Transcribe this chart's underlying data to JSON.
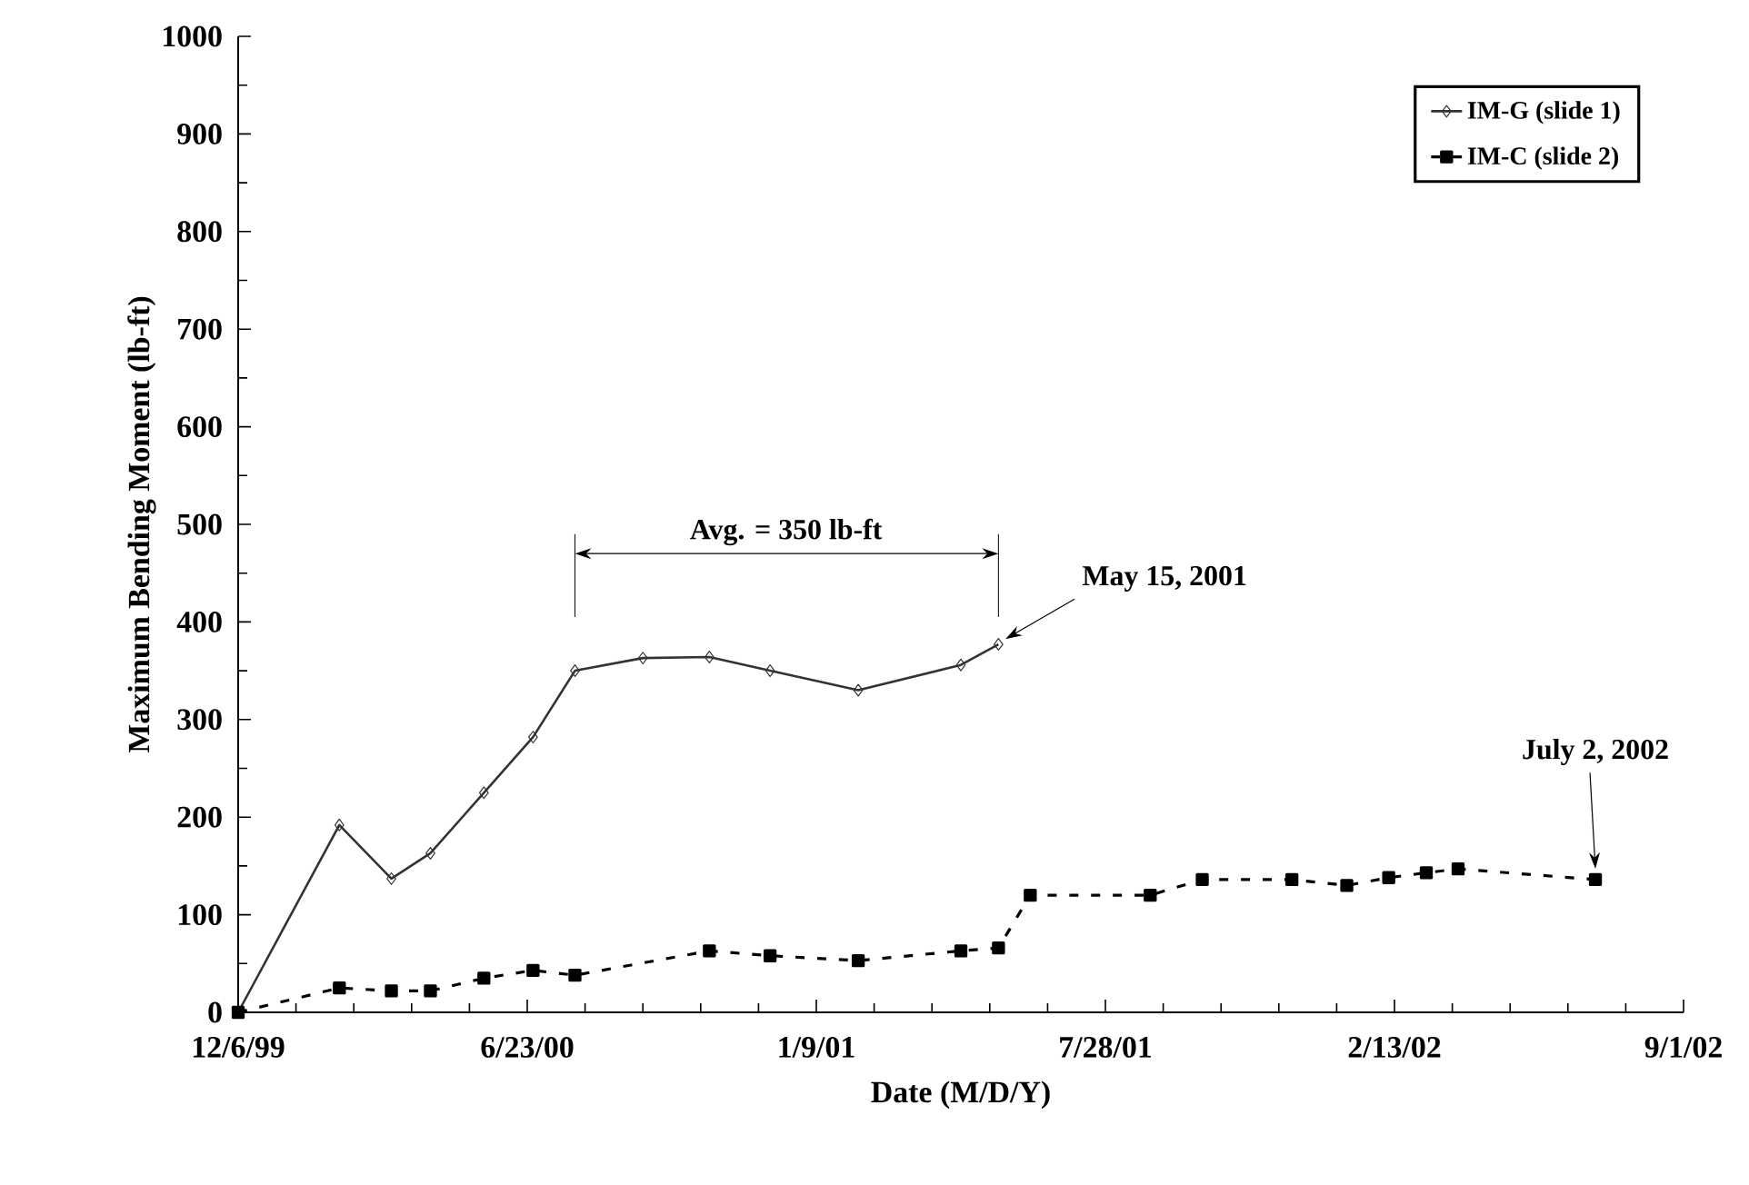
{
  "chart_data": {
    "type": "line",
    "xlabel": "Date (M/D/Y)",
    "ylabel": "Maximum Bending Moment (lb-ft)",
    "xlim": [
      "1999-12-06",
      "2002-09-01"
    ],
    "xticks": [
      {
        "value": "1999-12-06",
        "label": "12/6/99"
      },
      {
        "value": "2000-06-23",
        "label": "6/23/00"
      },
      {
        "value": "2001-01-09",
        "label": "1/9/01"
      },
      {
        "value": "2001-07-28",
        "label": "7/28/01"
      },
      {
        "value": "2002-02-13",
        "label": "2/13/02"
      },
      {
        "value": "2002-09-01",
        "label": "9/1/02"
      }
    ],
    "ylim": [
      0,
      1000
    ],
    "yticks": [
      0,
      100,
      200,
      300,
      400,
      500,
      600,
      700,
      800,
      900,
      1000
    ],
    "legend": "top right",
    "series": [
      {
        "name": "IM-G (slide 1)",
        "color": "#333333",
        "marker": "diamond",
        "line_style": "solid",
        "x": [
          "1999-12-06",
          "2000-02-14",
          "2000-03-21",
          "2000-04-17",
          "2000-05-24",
          "2000-06-27",
          "2000-07-26",
          "2000-09-11",
          "2000-10-27",
          "2000-12-08",
          "2001-02-07",
          "2001-04-19",
          "2001-05-15"
        ],
        "values": [
          0,
          192,
          137,
          163,
          225,
          282,
          350,
          363,
          364,
          350,
          330,
          356,
          377
        ]
      },
      {
        "name": "IM-C (slide 2)",
        "color": "#000000",
        "marker": "square",
        "line_style": "dashed",
        "x": [
          "1999-12-06",
          "2000-02-14",
          "2000-03-21",
          "2000-04-17",
          "2000-05-24",
          "2000-06-27",
          "2000-07-26",
          "2000-10-27",
          "2000-12-08",
          "2001-02-07",
          "2001-04-19",
          "2001-05-15",
          "2001-06-06",
          "2001-08-28",
          "2001-10-03",
          "2001-12-04",
          "2002-01-11",
          "2002-02-09",
          "2002-03-07",
          "2002-03-29",
          "2002-07-02"
        ],
        "values": [
          0,
          25,
          22,
          22,
          35,
          43,
          38,
          63,
          58,
          53,
          63,
          66,
          120,
          120,
          136,
          136,
          130,
          138,
          143,
          147,
          136
        ]
      }
    ],
    "ref_lines": [
      {
        "axis": "x",
        "value": "2000-07-26",
        "color": "#000000"
      },
      {
        "axis": "x",
        "value": "2001-05-15",
        "color": "#000000"
      }
    ],
    "annotations": [
      "May 15, 2001",
      "July 2, 2002",
      "Avg. = 350 lb-ft"
    ]
  }
}
